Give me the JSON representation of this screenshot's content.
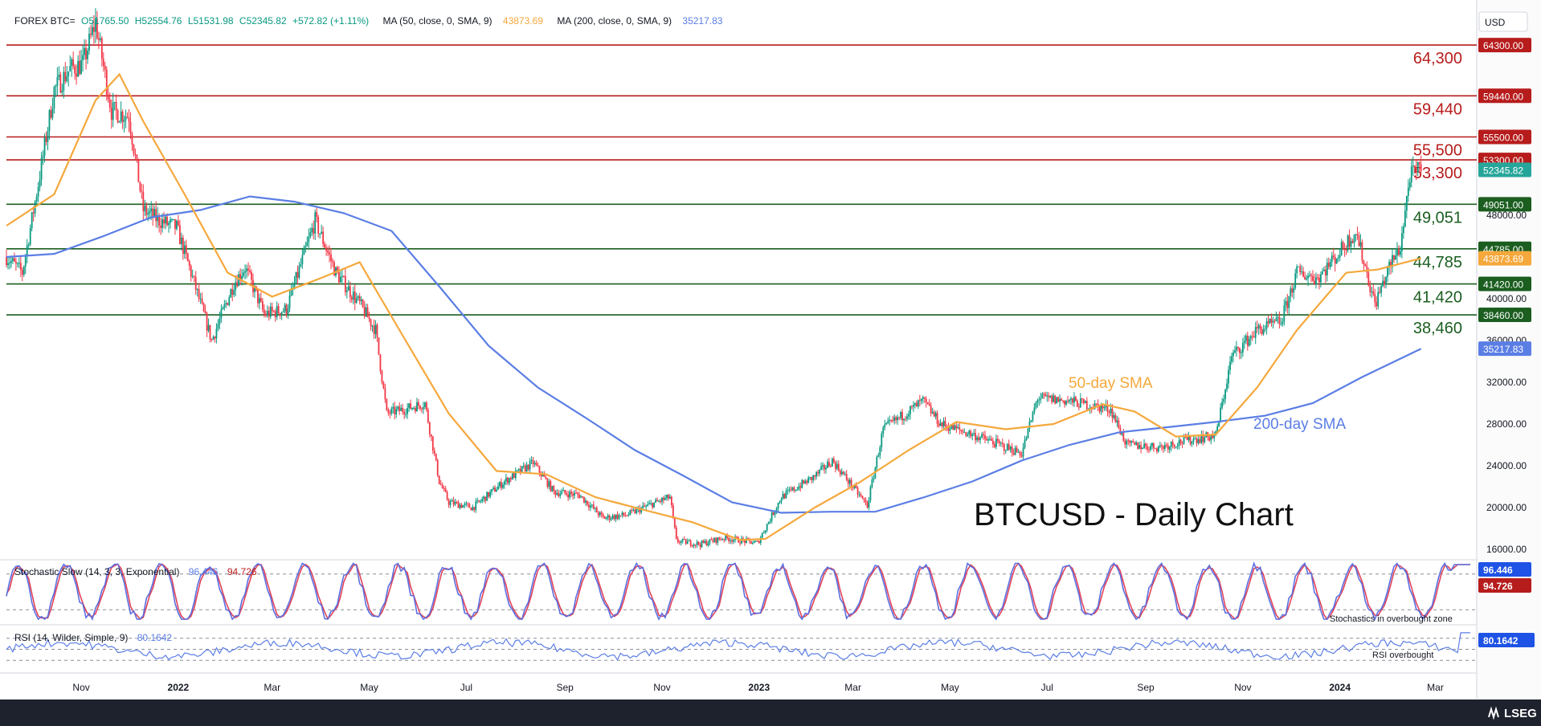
{
  "header": {
    "symbol": "FOREX BTC=",
    "open": "O51765.50",
    "high": "H52554.76",
    "low": "L51531.98",
    "close": "C52345.82",
    "change": "+572.82 (+1.11%)",
    "ma50_label": "MA (50, close, 0, SMA, 9)",
    "ma50_value": "43873.69",
    "ma200_label": "MA (200, close, 0, SMA, 9)",
    "ma200_value": "35217.83"
  },
  "currency": "USD",
  "title": "BTCUSD - Daily Chart",
  "brand": "LSEG",
  "colors": {
    "support": "#1b5e20",
    "resistance": "#b71c1c",
    "sma50": "#f5a83c",
    "sma200": "#5b7ee5",
    "up": "#089981",
    "down": "#f23645",
    "price_tag": "#26a69a"
  },
  "annotations": {
    "sma50": "50-day SMA",
    "sma200": "200-day SMA",
    "stoch_note": "Stochastics in overbought zone",
    "rsi_note": "RSI overbought"
  },
  "chart_data": {
    "type": "candlestick",
    "y_range": [
      15000,
      68000
    ],
    "y_ticks": [
      {
        "value": 16000,
        "label": "16000.00"
      },
      {
        "value": 20000,
        "label": "20000.00"
      },
      {
        "value": 24000,
        "label": "24000.00"
      },
      {
        "value": 28000,
        "label": "28000.00"
      },
      {
        "value": 32000,
        "label": "32000.00"
      },
      {
        "value": 36000,
        "label": "36000.00"
      },
      {
        "value": 40000,
        "label": "40000.00"
      },
      {
        "value": 48000,
        "label": "48000.00"
      }
    ],
    "x_ticks": [
      {
        "label": "Nov",
        "date": "2021-11-01",
        "bold": false
      },
      {
        "label": "2022",
        "date": "2022-01-01",
        "bold": true
      },
      {
        "label": "Mar",
        "date": "2022-03-01",
        "bold": false
      },
      {
        "label": "May",
        "date": "2022-05-01",
        "bold": false
      },
      {
        "label": "Jul",
        "date": "2022-07-01",
        "bold": false
      },
      {
        "label": "Sep",
        "date": "2022-09-01",
        "bold": false
      },
      {
        "label": "Nov",
        "date": "2022-11-01",
        "bold": false
      },
      {
        "label": "2023",
        "date": "2023-01-01",
        "bold": true
      },
      {
        "label": "Mar",
        "date": "2023-03-01",
        "bold": false
      },
      {
        "label": "May",
        "date": "2023-05-01",
        "bold": false
      },
      {
        "label": "Jul",
        "date": "2023-07-01",
        "bold": false
      },
      {
        "label": "Sep",
        "date": "2023-09-01",
        "bold": false
      },
      {
        "label": "Nov",
        "date": "2023-11-01",
        "bold": false
      },
      {
        "label": "2024",
        "date": "2024-01-01",
        "bold": true
      },
      {
        "label": "Mar",
        "date": "2024-03-01",
        "bold": false
      }
    ],
    "x_domain": [
      "2021-09-15",
      "2024-03-27"
    ],
    "levels": [
      {
        "value": 64300,
        "label": "64,300",
        "tag": "64300.00",
        "kind": "resistance"
      },
      {
        "value": 59440,
        "label": "59,440",
        "tag": "59440.00",
        "kind": "resistance"
      },
      {
        "value": 55500,
        "label": "55,500",
        "tag": "55500.00",
        "kind": "resistance"
      },
      {
        "value": 53300,
        "label": "53,300",
        "tag": "53300.00",
        "kind": "resistance"
      },
      {
        "value": 49051,
        "label": "49,051",
        "tag": "49051.00",
        "kind": "support"
      },
      {
        "value": 44785,
        "label": "44,785",
        "tag": "44785.00",
        "kind": "support"
      },
      {
        "value": 41420,
        "label": "41,420",
        "tag": "41420.00",
        "kind": "support"
      },
      {
        "value": 38460,
        "label": "38,460",
        "tag": "38460.00",
        "kind": "support"
      }
    ],
    "last_price": {
      "value": 52345.82,
      "tag": "52345.82"
    },
    "sma50_tag": {
      "value": 43873.69,
      "tag": "43873.69"
    },
    "sma200_tag": {
      "value": 35217.83,
      "tag": "35217.83"
    },
    "price_path": [
      [
        "2021-09-15",
        44000
      ],
      [
        "2021-09-25",
        42500
      ],
      [
        "2021-10-05",
        51000
      ],
      [
        "2021-10-15",
        60000
      ],
      [
        "2021-10-25",
        62000
      ],
      [
        "2021-11-02",
        62500
      ],
      [
        "2021-11-10",
        66500
      ],
      [
        "2021-11-20",
        58000
      ],
      [
        "2021-12-01",
        57500
      ],
      [
        "2021-12-10",
        48500
      ],
      [
        "2021-12-20",
        47500
      ],
      [
        "2021-12-31",
        46800
      ],
      [
        "2022-01-10",
        42000
      ],
      [
        "2022-01-22",
        36000
      ],
      [
        "2022-02-05",
        41500
      ],
      [
        "2022-02-12",
        43000
      ],
      [
        "2022-02-24",
        38500
      ],
      [
        "2022-03-10",
        39000
      ],
      [
        "2022-03-28",
        47500
      ],
      [
        "2022-04-10",
        42500
      ],
      [
        "2022-04-25",
        39500
      ],
      [
        "2022-05-05",
        37000
      ],
      [
        "2022-05-12",
        29000
      ],
      [
        "2022-05-25",
        29500
      ],
      [
        "2022-06-05",
        30000
      ],
      [
        "2022-06-14",
        22500
      ],
      [
        "2022-06-20",
        20500
      ],
      [
        "2022-07-05",
        20000
      ],
      [
        "2022-07-25",
        22500
      ],
      [
        "2022-08-12",
        24300
      ],
      [
        "2022-08-25",
        21500
      ],
      [
        "2022-09-10",
        21200
      ],
      [
        "2022-09-25",
        19000
      ],
      [
        "2022-10-10",
        19300
      ],
      [
        "2022-10-25",
        20300
      ],
      [
        "2022-11-06",
        21000
      ],
      [
        "2022-11-10",
        16800
      ],
      [
        "2022-11-25",
        16500
      ],
      [
        "2022-12-10",
        17100
      ],
      [
        "2022-12-31",
        16600
      ],
      [
        "2023-01-15",
        21000
      ],
      [
        "2023-02-05",
        23000
      ],
      [
        "2023-02-16",
        24500
      ],
      [
        "2023-03-10",
        20200
      ],
      [
        "2023-03-20",
        27500
      ],
      [
        "2023-04-14",
        30200
      ],
      [
        "2023-04-25",
        28000
      ],
      [
        "2023-05-15",
        27000
      ],
      [
        "2023-06-15",
        25200
      ],
      [
        "2023-06-25",
        30500
      ],
      [
        "2023-07-15",
        30200
      ],
      [
        "2023-08-10",
        29400
      ],
      [
        "2023-08-20",
        26000
      ],
      [
        "2023-09-10",
        25800
      ],
      [
        "2023-09-25",
        26400
      ],
      [
        "2023-10-15",
        26900
      ],
      [
        "2023-10-25",
        34500
      ],
      [
        "2023-11-10",
        37000
      ],
      [
        "2023-11-25",
        37800
      ],
      [
        "2023-12-05",
        42500
      ],
      [
        "2023-12-18",
        42000
      ],
      [
        "2024-01-01",
        44500
      ],
      [
        "2024-01-11",
        46500
      ],
      [
        "2024-01-23",
        39500
      ],
      [
        "2024-02-01",
        43000
      ],
      [
        "2024-02-08",
        45000
      ],
      [
        "2024-02-14",
        51800
      ],
      [
        "2024-02-21",
        52346
      ]
    ],
    "sma50": [
      [
        "2021-09-15",
        47000
      ],
      [
        "2021-10-15",
        50000
      ],
      [
        "2021-11-10",
        59000
      ],
      [
        "2021-11-25",
        61500
      ],
      [
        "2021-12-10",
        57000
      ],
      [
        "2022-01-05",
        50000
      ],
      [
        "2022-02-01",
        42500
      ],
      [
        "2022-03-01",
        40200
      ],
      [
        "2022-04-01",
        42000
      ],
      [
        "2022-04-25",
        43500
      ],
      [
        "2022-05-20",
        37000
      ],
      [
        "2022-06-20",
        29000
      ],
      [
        "2022-07-20",
        23500
      ],
      [
        "2022-08-20",
        23200
      ],
      [
        "2022-09-20",
        21000
      ],
      [
        "2022-10-20",
        19800
      ],
      [
        "2022-11-20",
        18600
      ],
      [
        "2022-12-20",
        16900
      ],
      [
        "2023-01-05",
        17000
      ],
      [
        "2023-02-05",
        20000
      ],
      [
        "2023-03-05",
        22400
      ],
      [
        "2023-04-05",
        25500
      ],
      [
        "2023-05-05",
        28200
      ],
      [
        "2023-06-05",
        27500
      ],
      [
        "2023-07-05",
        28000
      ],
      [
        "2023-08-05",
        29900
      ],
      [
        "2023-08-25",
        29200
      ],
      [
        "2023-09-20",
        26800
      ],
      [
        "2023-10-15",
        27000
      ],
      [
        "2023-11-10",
        31500
      ],
      [
        "2023-12-05",
        37000
      ],
      [
        "2024-01-05",
        42500
      ],
      [
        "2024-01-25",
        42800
      ],
      [
        "2024-02-21",
        43874
      ]
    ],
    "sma200": [
      [
        "2021-09-15",
        44000
      ],
      [
        "2021-10-15",
        44300
      ],
      [
        "2021-11-15",
        46000
      ],
      [
        "2021-12-15",
        47800
      ],
      [
        "2022-01-15",
        48500
      ],
      [
        "2022-02-15",
        49800
      ],
      [
        "2022-03-15",
        49300
      ],
      [
        "2022-04-15",
        48200
      ],
      [
        "2022-05-15",
        46500
      ],
      [
        "2022-06-15",
        41000
      ],
      [
        "2022-07-15",
        35500
      ],
      [
        "2022-08-15",
        31500
      ],
      [
        "2022-09-15",
        28500
      ],
      [
        "2022-10-15",
        25500
      ],
      [
        "2022-11-15",
        23000
      ],
      [
        "2022-12-15",
        20500
      ],
      [
        "2023-01-15",
        19500
      ],
      [
        "2023-02-15",
        19600
      ],
      [
        "2023-03-15",
        19600
      ],
      [
        "2023-04-15",
        21000
      ],
      [
        "2023-05-15",
        22500
      ],
      [
        "2023-06-15",
        24500
      ],
      [
        "2023-07-15",
        26000
      ],
      [
        "2023-08-15",
        27200
      ],
      [
        "2023-09-15",
        27700
      ],
      [
        "2023-10-15",
        28200
      ],
      [
        "2023-11-15",
        28800
      ],
      [
        "2023-12-15",
        30000
      ],
      [
        "2024-01-15",
        32500
      ],
      [
        "2024-02-21",
        35218
      ]
    ]
  },
  "stochastic": {
    "label": "Stochastic Slow (14, 3, 3, Exponential)",
    "k_value": "96.446",
    "d_value": "94.726",
    "k_tag": "96.446",
    "d_tag": "94.726",
    "overbought": 80,
    "oversold": 20
  },
  "rsi": {
    "label": "RSI (14, Wilder, Simple, 9)",
    "value": "80.1642",
    "tag": "80.1642",
    "overbought": 70,
    "oversold": 30
  }
}
